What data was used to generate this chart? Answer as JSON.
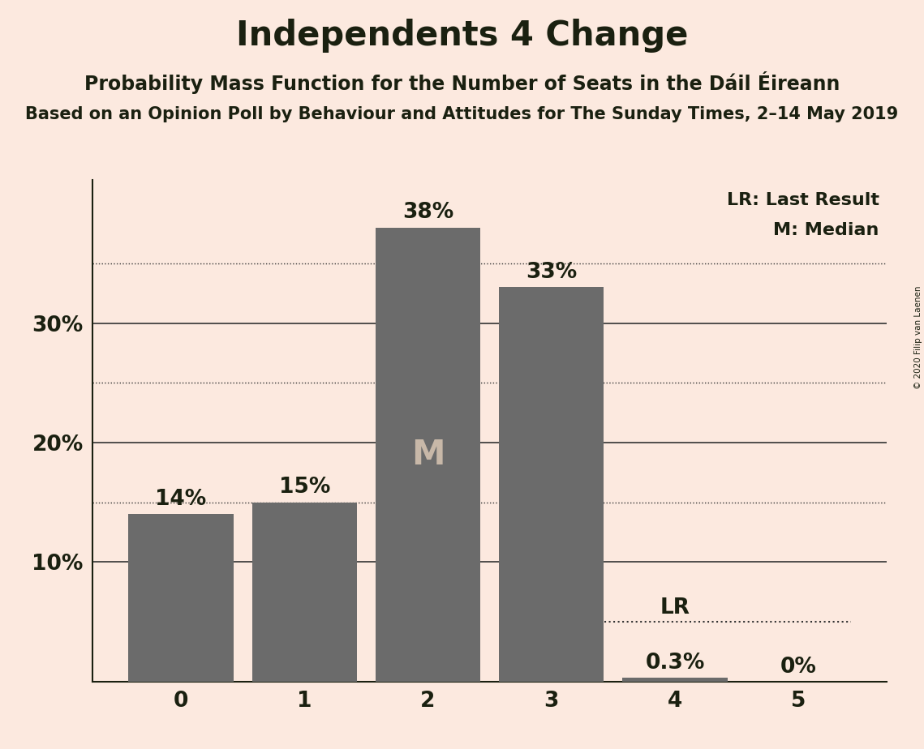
{
  "title": "Independents 4 Change",
  "subtitle": "Probability Mass Function for the Number of Seats in the Dáil Éireann",
  "subtitle2": "Based on an Opinion Poll by Behaviour and Attitudes for The Sunday Times, 2–14 May 2019",
  "copyright": "© 2020 Filip van Laenen",
  "categories": [
    0,
    1,
    2,
    3,
    4,
    5
  ],
  "values": [
    0.14,
    0.15,
    0.38,
    0.33,
    0.003,
    0.0
  ],
  "bar_color": "#6b6b6b",
  "background_color": "#fce9df",
  "text_color": "#1a2010",
  "bar_labels": [
    "14%",
    "15%",
    "38%",
    "33%",
    "0.3%",
    "0%"
  ],
  "median_bar": 2,
  "median_label": "M",
  "lr_value": 0.05,
  "lr_label": "LR",
  "legend_lr": "LR: Last Result",
  "legend_m": "M: Median",
  "yticks": [
    0.1,
    0.2,
    0.3
  ],
  "ytick_labels": [
    "10%",
    "20%",
    "30%"
  ],
  "ylim": [
    0,
    0.42
  ],
  "solid_gridlines": [
    0.1,
    0.2,
    0.3
  ],
  "dotted_gridlines": [
    0.15,
    0.25,
    0.35
  ],
  "title_fontsize": 30,
  "subtitle_fontsize": 17,
  "subtitle2_fontsize": 15,
  "bar_label_fontsize": 19,
  "ytick_fontsize": 19,
  "xtick_fontsize": 19,
  "legend_fontsize": 16,
  "median_label_fontsize": 30,
  "lr_label_fontsize": 19
}
